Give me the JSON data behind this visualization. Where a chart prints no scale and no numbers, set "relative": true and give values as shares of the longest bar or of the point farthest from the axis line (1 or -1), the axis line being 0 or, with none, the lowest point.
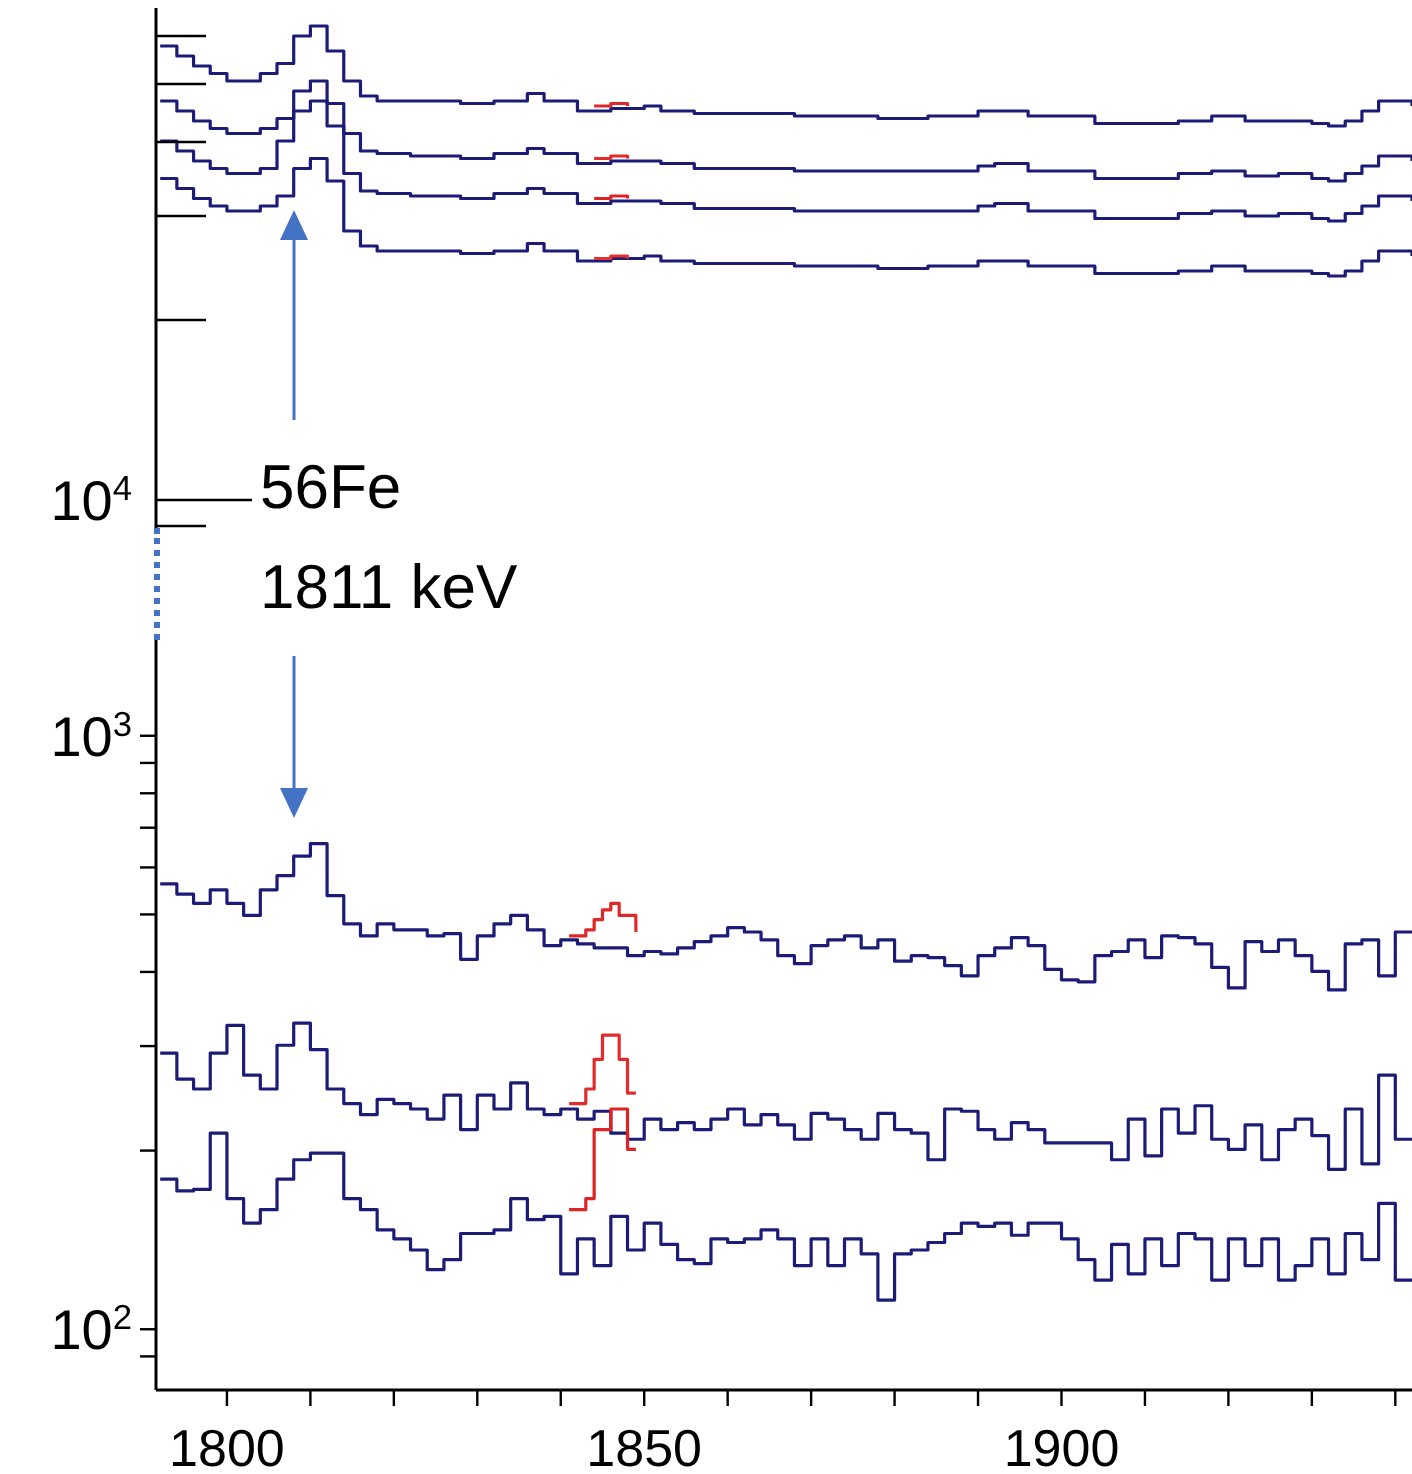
{
  "chart_data": [
    {
      "type": "step",
      "relative": true,
      "annotations": [
        "10$^{4}$"
      ],
      "categories": [
        null,
        null,
        null,
        null,
        null,
        null,
        null,
        null,
        null,
        null,
        null,
        null,
        null,
        null,
        null,
        null,
        null,
        null,
        null,
        null,
        null,
        null,
        null,
        null,
        null,
        null,
        null,
        null,
        null,
        null,
        null,
        null,
        null,
        null,
        null,
        null,
        null,
        null,
        null,
        null,
        null,
        null,
        null,
        null,
        null,
        null,
        null,
        null,
        null,
        null,
        null,
        null,
        null,
        null,
        null,
        null,
        null,
        null,
        null,
        null,
        null,
        null,
        null,
        null,
        null,
        null,
        null,
        null,
        null,
        null,
        null,
        null,
        null,
        null,
        null,
        null
      ],
      "series": [
        {
          "color": "#1c1c78",
          "values": [
            0.92,
            0.88,
            0.84,
            0.81,
            0.78,
            0.78,
            0.81,
            0.85,
            0.96,
            1,
            0.9,
            0.78,
            0.72,
            0.7,
            0.7,
            0.7,
            0.7,
            0.7,
            0.69,
            0.69,
            0.7,
            0.7,
            0.73,
            0.7,
            0.7,
            0.66,
            0.66,
            0.67,
            0.67,
            0.68,
            0.66,
            0.66,
            0.65,
            0.65,
            0.65,
            0.65,
            0.65,
            0.65,
            0.64,
            0.64,
            0.64,
            0.64,
            0.64,
            0.63,
            0.63,
            0.63,
            0.64,
            0.64,
            0.64,
            0.66,
            0.66,
            0.66,
            0.64,
            0.64,
            0.64,
            0.64,
            0.61,
            0.61,
            0.61,
            0.61,
            0.61,
            0.62,
            0.62,
            0.64,
            0.64,
            0.62,
            0.62,
            0.62,
            0.62,
            0.61,
            0.6,
            0.62,
            0.66,
            0.7,
            0.7,
            0.68
          ]
        },
        {
          "color": "#1c1c78",
          "values": [
            0.7,
            0.66,
            0.62,
            0.59,
            0.57,
            0.57,
            0.59,
            0.63,
            0.74,
            0.78,
            0.69,
            0.57,
            0.5,
            0.49,
            0.49,
            0.48,
            0.48,
            0.48,
            0.47,
            0.47,
            0.49,
            0.49,
            0.51,
            0.49,
            0.49,
            0.45,
            0.45,
            0.46,
            0.46,
            0.46,
            0.45,
            0.45,
            0.43,
            0.43,
            0.43,
            0.43,
            0.43,
            0.43,
            0.42,
            0.42,
            0.42,
            0.42,
            0.42,
            0.42,
            0.42,
            0.42,
            0.42,
            0.42,
            0.42,
            0.44,
            0.45,
            0.45,
            0.42,
            0.42,
            0.42,
            0.42,
            0.39,
            0.39,
            0.39,
            0.39,
            0.39,
            0.41,
            0.41,
            0.42,
            0.42,
            0.4,
            0.4,
            0.41,
            0.41,
            0.39,
            0.38,
            0.41,
            0.44,
            0.48,
            0.48,
            0.46
          ]
        },
        {
          "color": "#1c1c78",
          "values": [
            0.54,
            0.5,
            0.46,
            0.43,
            0.41,
            0.41,
            0.43,
            0.54,
            0.66,
            0.7,
            0.6,
            0.41,
            0.34,
            0.33,
            0.33,
            0.32,
            0.32,
            0.32,
            0.31,
            0.31,
            0.33,
            0.33,
            0.35,
            0.33,
            0.33,
            0.29,
            0.29,
            0.3,
            0.3,
            0.3,
            0.29,
            0.29,
            0.27,
            0.27,
            0.27,
            0.27,
            0.27,
            0.27,
            0.26,
            0.26,
            0.26,
            0.26,
            0.26,
            0.26,
            0.26,
            0.26,
            0.26,
            0.26,
            0.26,
            0.28,
            0.29,
            0.29,
            0.26,
            0.26,
            0.26,
            0.26,
            0.23,
            0.23,
            0.23,
            0.23,
            0.23,
            0.25,
            0.25,
            0.26,
            0.26,
            0.24,
            0.24,
            0.25,
            0.25,
            0.23,
            0.22,
            0.25,
            0.28,
            0.32,
            0.32,
            0.3
          ]
        },
        {
          "color": "#1c1c78",
          "values": [
            0.39,
            0.35,
            0.31,
            0.28,
            0.26,
            0.26,
            0.28,
            0.32,
            0.43,
            0.47,
            0.38,
            0.18,
            0.12,
            0.1,
            0.1,
            0.1,
            0.1,
            0.1,
            0.09,
            0.09,
            0.1,
            0.1,
            0.13,
            0.1,
            0.1,
            0.06,
            0.06,
            0.07,
            0.07,
            0.08,
            0.06,
            0.06,
            0.05,
            0.05,
            0.05,
            0.05,
            0.05,
            0.05,
            0.04,
            0.04,
            0.04,
            0.04,
            0.04,
            0.03,
            0.03,
            0.03,
            0.04,
            0.04,
            0.04,
            0.06,
            0.06,
            0.06,
            0.04,
            0.04,
            0.04,
            0.04,
            0.01,
            0.01,
            0.01,
            0.01,
            0.01,
            0.02,
            0.02,
            0.04,
            0.04,
            0.02,
            0.02,
            0.02,
            0.02,
            0.01,
            0,
            0.02,
            0.06,
            0.1,
            0.1,
            0.08
          ]
        },
        {
          "color": "#e02828",
          "values": [
            null,
            null,
            null,
            null,
            null,
            null,
            null,
            null,
            null,
            null,
            null,
            null,
            null,
            null,
            null,
            null,
            null,
            null,
            null,
            null,
            null,
            null,
            null,
            null,
            null,
            null,
            0.68,
            0.69,
            0.68,
            null,
            null,
            null,
            null,
            null,
            null,
            null,
            null,
            null,
            null,
            null,
            null,
            null,
            null,
            null,
            null,
            null,
            null,
            null,
            null,
            null,
            null,
            null,
            null,
            null,
            null,
            null,
            null,
            null,
            null,
            null,
            null,
            null,
            null,
            null,
            null,
            null,
            null,
            null,
            null,
            null,
            null,
            null,
            null,
            null,
            null,
            null
          ]
        },
        {
          "color": "#e22c2c",
          "values": [
            null,
            null,
            null,
            null,
            null,
            null,
            null,
            null,
            null,
            null,
            null,
            null,
            null,
            null,
            null,
            null,
            null,
            null,
            null,
            null,
            null,
            null,
            null,
            null,
            null,
            null,
            0.47,
            0.48,
            0.47,
            null,
            null,
            null,
            null,
            null,
            null,
            null,
            null,
            null,
            null,
            null,
            null,
            null,
            null,
            null,
            null,
            null,
            null,
            null,
            null,
            null,
            null,
            null,
            null,
            null,
            null,
            null,
            null,
            null,
            null,
            null,
            null,
            null,
            null,
            null,
            null,
            null,
            null,
            null,
            null,
            null,
            null,
            null,
            null,
            null,
            null,
            null
          ]
        },
        {
          "color": "#dc2424",
          "values": [
            null,
            null,
            null,
            null,
            null,
            null,
            null,
            null,
            null,
            null,
            null,
            null,
            null,
            null,
            null,
            null,
            null,
            null,
            null,
            null,
            null,
            null,
            null,
            null,
            null,
            null,
            0.31,
            0.32,
            0.31,
            null,
            null,
            null,
            null,
            null,
            null,
            null,
            null,
            null,
            null,
            null,
            null,
            null,
            null,
            null,
            null,
            null,
            null,
            null,
            null,
            null,
            null,
            null,
            null,
            null,
            null,
            null,
            null,
            null,
            null,
            null,
            null,
            null,
            null,
            null,
            null,
            null,
            null,
            null,
            null,
            null,
            null,
            null,
            null,
            null,
            null,
            null
          ]
        },
        {
          "color": "#e43030",
          "values": [
            null,
            null,
            null,
            null,
            null,
            null,
            null,
            null,
            null,
            null,
            null,
            null,
            null,
            null,
            null,
            null,
            null,
            null,
            null,
            null,
            null,
            null,
            null,
            null,
            null,
            null,
            0.07,
            0.08,
            0.07,
            null,
            null,
            null,
            null,
            null,
            null,
            null,
            null,
            null,
            null,
            null,
            null,
            null,
            null,
            null,
            null,
            null,
            null,
            null,
            null,
            null,
            null,
            null,
            null,
            null,
            null,
            null,
            null,
            null,
            null,
            null,
            null,
            null,
            null,
            null,
            null,
            null,
            null,
            null,
            null,
            null,
            null,
            null,
            null,
            null,
            null,
            null
          ]
        }
      ]
    },
    {
      "type": "step",
      "log": true,
      "xlim": [
        1791.5,
        1942
      ],
      "ylim": [
        79,
        1450
      ],
      "xticks": [
        1800,
        {
          "value": 1810,
          "label": null
        },
        {
          "value": 1820,
          "label": null
        },
        {
          "value": 1830,
          "label": null
        },
        {
          "value": 1840,
          "label": null
        },
        1850,
        {
          "value": 1860,
          "label": null
        },
        {
          "value": 1870,
          "label": null
        },
        {
          "value": 1880,
          "label": null
        },
        {
          "value": 1890,
          "label": null
        },
        1900,
        {
          "value": 1910,
          "label": null
        },
        {
          "value": 1920,
          "label": null
        },
        {
          "value": 1930,
          "label": null
        },
        {
          "value": 1940,
          "label": null
        }
      ],
      "yticks": [
        {
          "value": 90,
          "label": null
        },
        {
          "value": 100,
          "label": "10$^{2}$"
        },
        {
          "value": 200,
          "label": null
        },
        {
          "value": 300,
          "label": null
        },
        {
          "value": 400,
          "label": null
        },
        {
          "value": 500,
          "label": null
        },
        {
          "value": 600,
          "label": null
        },
        {
          "value": 700,
          "label": null
        },
        {
          "value": 800,
          "label": null
        },
        {
          "value": 900,
          "label": null
        },
        {
          "value": 1000,
          "label": "10$^{3}$"
        }
      ],
      "annotations": [
        "56Fe",
        "1811 keV"
      ],
      "x": [
        1792,
        1794,
        1796,
        1798,
        1800,
        1802,
        1804,
        1806,
        1808,
        1810,
        1812,
        1814,
        1816,
        1818,
        1820,
        1822,
        1824,
        1826,
        1828,
        1830,
        1832,
        1834,
        1836,
        1838,
        1840,
        1842,
        1844,
        1846,
        1848,
        1850,
        1852,
        1854,
        1856,
        1858,
        1860,
        1862,
        1864,
        1866,
        1868,
        1870,
        1872,
        1874,
        1876,
        1878,
        1880,
        1882,
        1884,
        1886,
        1888,
        1890,
        1892,
        1894,
        1896,
        1898,
        1900,
        1902,
        1904,
        1906,
        1908,
        1910,
        1912,
        1914,
        1916,
        1918,
        1920,
        1922,
        1924,
        1926,
        1928,
        1930,
        1932,
        1934,
        1936,
        1938,
        1940,
        1942
      ],
      "series": [
        {
          "color": "#1c1c78",
          "values": [
            563,
            541,
            522,
            550,
            522,
            498,
            550,
            581,
            627,
            658,
            538,
            482,
            460,
            482,
            471,
            471,
            460,
            464,
            420,
            460,
            482,
            498,
            471,
            443,
            453,
            446,
            439,
            439,
            426,
            433,
            429,
            439,
            450,
            460,
            475,
            467,
            453,
            426,
            413,
            443,
            453,
            460,
            439,
            453,
            417,
            426,
            423,
            410,
            394,
            426,
            439,
            457,
            443,
            404,
            388,
            385,
            426,
            433,
            453,
            423,
            460,
            457,
            446,
            407,
            376,
            450,
            433,
            453,
            426,
            401,
            373,
            446,
            453,
            394,
            467,
            467
          ]
        },
        {
          "color": "#1c1c78",
          "values": [
            292,
            264,
            254,
            292,
            325,
            268,
            254,
            301,
            328,
            296,
            254,
            240,
            230,
            244,
            240,
            235,
            226,
            248,
            217,
            248,
            235,
            260,
            235,
            230,
            235,
            226,
            233,
            214,
            209,
            226,
            217,
            223,
            217,
            226,
            235,
            221,
            230,
            221,
            209,
            231,
            226,
            217,
            209,
            231,
            217,
            214,
            193,
            235,
            233,
            217,
            209,
            223,
            217,
            206,
            206,
            206,
            206,
            193,
            226,
            196,
            235,
            214,
            238,
            209,
            201,
            221,
            193,
            217,
            226,
            212,
            186,
            235,
            190,
            268,
            209,
            209
          ]
        },
        {
          "color": "#1c1c78",
          "values": [
            179,
            171,
            172,
            214,
            166,
            151,
            159,
            179,
            193,
            198,
            198,
            166,
            159,
            147,
            142,
            136,
            126,
            131,
            145,
            145,
            147,
            166,
            153,
            155,
            124,
            142,
            128,
            155,
            136,
            151,
            139,
            131,
            129,
            142,
            140,
            142,
            147,
            142,
            128,
            142,
            128,
            142,
            134,
            112,
            134,
            136,
            140,
            145,
            151,
            149,
            151,
            144,
            151,
            151,
            142,
            131,
            121,
            139,
            124,
            142,
            128,
            145,
            142,
            121,
            142,
            128,
            142,
            121,
            128,
            142,
            124,
            145,
            131,
            163,
            121,
            121
          ]
        },
        {
          "color": "#e02828",
          "x": [
            1841,
            1843,
            1844,
            1845,
            1846,
            1847,
            1849
          ],
          "values": [
            460,
            471,
            490,
            509,
            522,
            498,
            467
          ]
        },
        {
          "color": "#e22c2c",
          "x": [
            1841,
            1843,
            1844,
            1845,
            1847,
            1848,
            1849
          ],
          "values": [
            240,
            254,
            285,
            313,
            285,
            250,
            250
          ]
        },
        {
          "color": "#dc2424",
          "x": [
            1841,
            1843,
            1844,
            1846,
            1848,
            1849
          ],
          "values": [
            159,
            166,
            217,
            235,
            201,
            201
          ]
        }
      ]
    }
  ]
}
